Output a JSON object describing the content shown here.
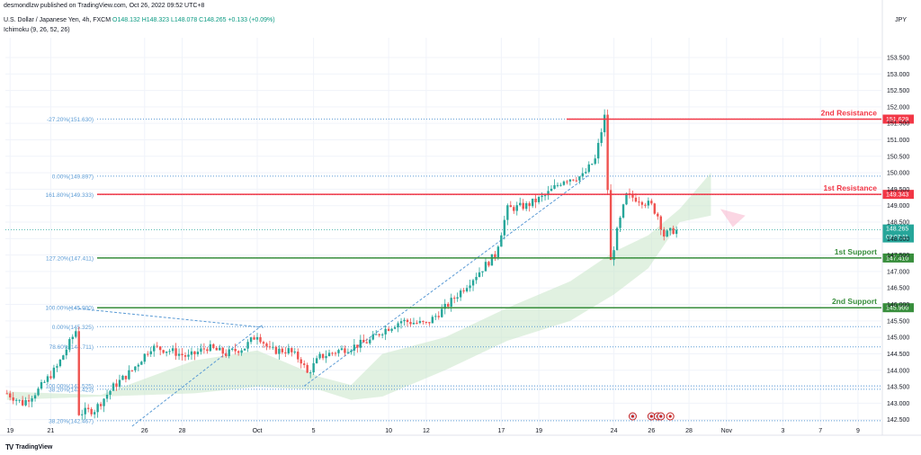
{
  "header": {
    "author_line": "desmondlzw published on TradingView.com, Oct 26, 2022 09:52 UTC+8",
    "symbol": "U.S. Dollar / Japanese Yen, 4h, FXCM",
    "ohlc": "O148.132 H148.323 L148.078 C148.265 +0.133 (+0.09%)",
    "indicator": "Ichimoku (9, 26, 52, 26)",
    "currency": "JPY"
  },
  "footer": {
    "logo_text": "TradingView"
  },
  "colors": {
    "up": "#26a69a",
    "down": "#ef5350",
    "resistance": "#f23645",
    "support": "#388e3c",
    "fib": "#5b9bd5",
    "cloud": "#c8e6c9",
    "axis_text": "#131722",
    "grid": "#f0f3fa"
  },
  "chart_data": {
    "type": "candlestick",
    "symbol": "USDJPY",
    "timeframe": "4h",
    "ylim": [
      142.3,
      154.1
    ],
    "yticks": [
      142.5,
      143.0,
      143.5,
      144.0,
      144.5,
      145.0,
      145.5,
      146.0,
      146.5,
      147.0,
      147.5,
      148.0,
      148.5,
      149.0,
      149.5,
      150.0,
      150.5,
      151.0,
      151.5,
      152.0,
      152.5,
      153.0,
      153.5
    ],
    "xticks": [
      {
        "label": "19",
        "i": 1
      },
      {
        "label": "21",
        "i": 14
      },
      {
        "label": "26",
        "i": 44
      },
      {
        "label": "28",
        "i": 56
      },
      {
        "label": "Oct",
        "i": 80
      },
      {
        "label": "5",
        "i": 98
      },
      {
        "label": "10",
        "i": 122
      },
      {
        "label": "12",
        "i": 134
      },
      {
        "label": "17",
        "i": 158
      },
      {
        "label": "19",
        "i": 170
      },
      {
        "label": "24",
        "i": 194
      },
      {
        "label": "26",
        "i": 206
      },
      {
        "label": "28",
        "i": 218
      },
      {
        "label": "Nov",
        "i": 230
      },
      {
        "label": "3",
        "i": 248
      },
      {
        "label": "7",
        "i": 260
      },
      {
        "label": "9",
        "i": 272
      }
    ],
    "last_price": 148.265,
    "countdown": "03:07:11",
    "levels": [
      {
        "label": "2nd Resistance",
        "price": 151.629,
        "tag": "151.629",
        "kind": "resistance"
      },
      {
        "label": "1st Resistance",
        "price": 149.343,
        "tag": "149.343",
        "kind": "resistance"
      },
      {
        "label": "1st Support",
        "price": 147.41,
        "tag": "147.410",
        "kind": "support"
      },
      {
        "label": "2nd Support",
        "price": 145.9,
        "tag": "145.900",
        "kind": "support"
      }
    ],
    "fib_levels": [
      {
        "label": "-27.20%(151.630)",
        "price": 151.63
      },
      {
        "label": "0.00%(149.897)",
        "price": 149.897
      },
      {
        "label": "161.80%(149.333)",
        "price": 149.333
      },
      {
        "label": "127.20%(147.411)",
        "price": 147.411
      },
      {
        "label": "100.00%(145.900)",
        "price": 145.9
      },
      {
        "label": "0.00%(145.325)",
        "price": 145.325
      },
      {
        "label": "78.60%(144.711)",
        "price": 144.711
      },
      {
        "label": "100.00%(143.525)",
        "price": 143.525
      },
      {
        "label": "38.20%(143.423)",
        "price": 143.423
      },
      {
        "label": "38.20%(142.467)",
        "price": 142.467
      }
    ],
    "close_path": [
      [
        0,
        143.3
      ],
      [
        5,
        143.0
      ],
      [
        10,
        143.4
      ],
      [
        16,
        144.1
      ],
      [
        22,
        145.2
      ],
      [
        23,
        142.7
      ],
      [
        28,
        142.8
      ],
      [
        34,
        143.5
      ],
      [
        40,
        144.0
      ],
      [
        46,
        144.7
      ],
      [
        52,
        144.6
      ],
      [
        58,
        144.4
      ],
      [
        64,
        144.7
      ],
      [
        70,
        144.5
      ],
      [
        76,
        144.7
      ],
      [
        80,
        145.1
      ],
      [
        84,
        144.6
      ],
      [
        90,
        144.6
      ],
      [
        94,
        144.3
      ],
      [
        96,
        143.9
      ],
      [
        100,
        144.4
      ],
      [
        106,
        144.6
      ],
      [
        110,
        144.7
      ],
      [
        116,
        144.9
      ],
      [
        120,
        145.2
      ],
      [
        126,
        145.5
      ],
      [
        134,
        145.4
      ],
      [
        140,
        145.9
      ],
      [
        146,
        146.5
      ],
      [
        150,
        146.9
      ],
      [
        156,
        147.5
      ],
      [
        160,
        148.9
      ],
      [
        166,
        149.0
      ],
      [
        172,
        149.3
      ],
      [
        178,
        149.8
      ],
      [
        184,
        149.9
      ],
      [
        188,
        150.4
      ],
      [
        191,
        151.7
      ],
      [
        193,
        147.3
      ],
      [
        195,
        148.2
      ],
      [
        198,
        149.3
      ],
      [
        202,
        149.2
      ],
      [
        206,
        149.0
      ],
      [
        208,
        148.7
      ],
      [
        210,
        148.1
      ],
      [
        212,
        148.2
      ],
      [
        214,
        148.3
      ]
    ],
    "cloud": {
      "upper": [
        [
          0,
          143.35
        ],
        [
          30,
          143.25
        ],
        [
          60,
          144.3
        ],
        [
          80,
          144.6
        ],
        [
          100,
          143.8
        ],
        [
          110,
          143.55
        ],
        [
          120,
          144.5
        ],
        [
          140,
          145.0
        ],
        [
          160,
          145.9
        ],
        [
          180,
          146.7
        ],
        [
          194,
          147.6
        ],
        [
          205,
          148.1
        ],
        [
          215,
          148.9
        ],
        [
          225,
          150.0
        ]
      ],
      "lower": [
        [
          0,
          143.1
        ],
        [
          30,
          143.2
        ],
        [
          60,
          143.3
        ],
        [
          80,
          143.5
        ],
        [
          100,
          143.4
        ],
        [
          110,
          143.1
        ],
        [
          120,
          143.2
        ],
        [
          140,
          144.0
        ],
        [
          160,
          144.9
        ],
        [
          180,
          145.5
        ],
        [
          194,
          146.3
        ],
        [
          205,
          147.1
        ],
        [
          215,
          148.5
        ],
        [
          225,
          148.7
        ]
      ]
    },
    "fib_trendlines": [
      {
        "from": [
          20,
          145.9
        ],
        "to": [
          82,
          145.3
        ]
      },
      {
        "from": [
          40,
          142.3
        ],
        "to": [
          82,
          145.4
        ]
      },
      {
        "from": [
          95,
          143.52
        ],
        "to": [
          186,
          149.93
        ]
      }
    ],
    "event_markers": [
      200,
      206,
      208,
      209,
      212
    ]
  }
}
